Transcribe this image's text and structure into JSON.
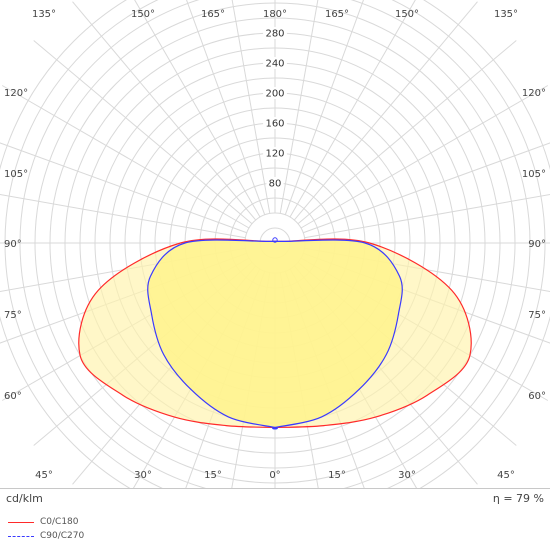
{
  "chart_data": {
    "type": "polar",
    "unit": "cd/klm",
    "efficiency": "η = 79 %",
    "radial_ticks": [
      80,
      120,
      160,
      200,
      240,
      280
    ],
    "radial_tick_labels": [
      "80",
      "120",
      "160",
      "200",
      "240",
      "280"
    ],
    "r_max": 280,
    "angle_labels_top": [
      "135°",
      "150°",
      "165°",
      "180°",
      "165°",
      "150°",
      "135°"
    ],
    "angle_labels_bottom": [
      "45°",
      "30°",
      "15°",
      "0°",
      "15°",
      "30°",
      "45°"
    ],
    "angle_labels_left": [
      "120°",
      "105°",
      "90°",
      "75°",
      "60°"
    ],
    "angle_labels_right": [
      "120°",
      "105°",
      "90°",
      "75°",
      "60°"
    ],
    "series": [
      {
        "name": "C0/C180",
        "color": "#ff2a2a",
        "angles": [
          0,
          15,
          30,
          45,
          60,
          75,
          90,
          105
        ],
        "values": [
          246,
          252,
          268,
          287,
          300,
          244,
          126,
          8
        ]
      },
      {
        "name": "C90/C270",
        "color": "#3a3aff",
        "angles": [
          0,
          15,
          30,
          45,
          60,
          75,
          90,
          105
        ],
        "values": [
          246,
          240,
          225,
          210,
          190,
          172,
          120,
          8
        ]
      }
    ]
  }
}
